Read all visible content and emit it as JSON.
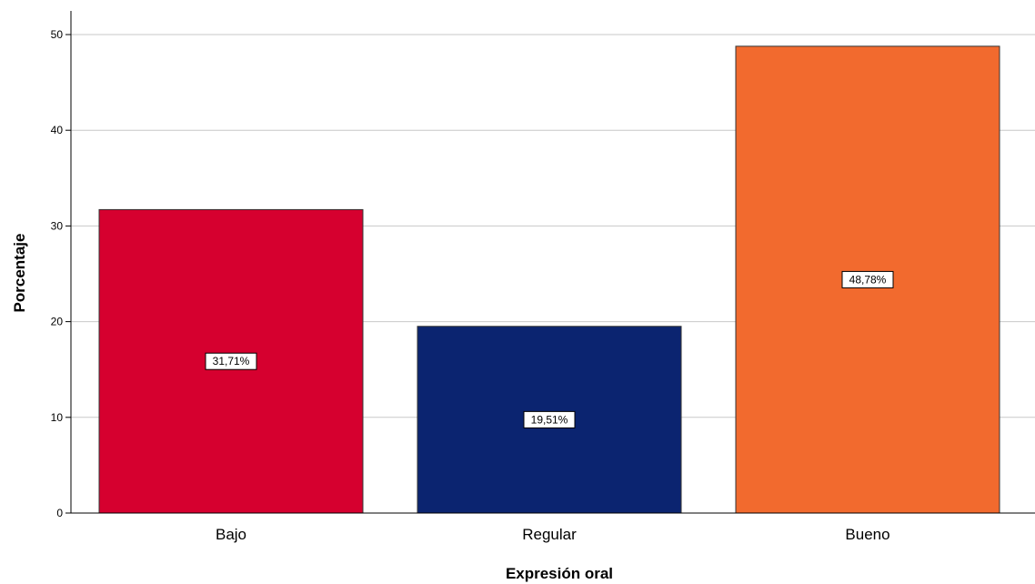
{
  "chart_data": {
    "type": "bar",
    "categories": [
      "Bajo",
      "Regular",
      "Bueno"
    ],
    "values": [
      31.71,
      19.51,
      48.78
    ],
    "data_labels": [
      "31,71%",
      "19,51%",
      "48,78%"
    ],
    "colors": [
      "#d6002f",
      "#0b2470",
      "#f26a2e"
    ],
    "xlabel": "Expresión oral",
    "ylabel": "Porcentaje",
    "ylim": [
      0,
      52
    ],
    "yticks": [
      0,
      10,
      20,
      30,
      40,
      50
    ],
    "grid": true,
    "legend": "none"
  }
}
